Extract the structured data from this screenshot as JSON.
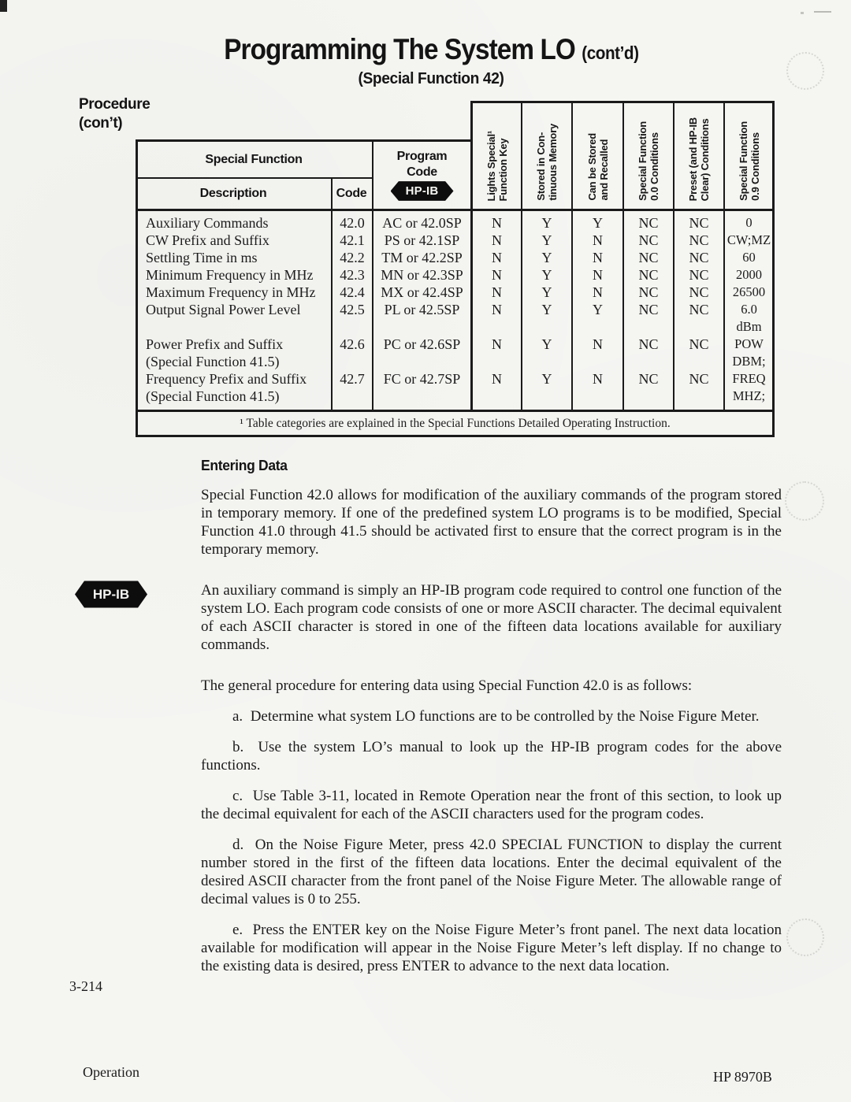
{
  "page": {
    "title": "Programming The System LO",
    "title_suffix": "(cont’d)",
    "subtitle": "(Special Function 42)",
    "margin_label_line1": "Procedure",
    "margin_label_line2": "(con’t)",
    "hpib_badge": "HP-IB",
    "footer_page_number": "3-214",
    "footer_left": "Operation",
    "footer_right": "HP 8970B"
  },
  "table": {
    "header": {
      "special_function": "Special Function",
      "description": "Description",
      "code": "Code",
      "program_line1": "Program",
      "program_line2": "Code",
      "hpib_badge": "HP-IB",
      "rotated_columns": [
        "Lights Special¹\nFunction Key",
        "Stored in Con-\ntinuous Memory",
        "Can be Stored\nand Recalled",
        "Special Function\n0.0 Conditions",
        "Preset (and HP-IB\nClear) Conditions",
        "Special Function\n0.9 Conditions"
      ]
    },
    "rows": [
      {
        "description": "Auxiliary Commands",
        "code": "42.0",
        "program_code": "AC or 42.0SP",
        "lights_special_key": "N",
        "stored_in_continuous_memory": "Y",
        "can_be_stored_and_recalled": "Y",
        "sf_00_conditions": "NC",
        "preset_conditions": "NC",
        "sf_09_conditions": "0"
      },
      {
        "description": "CW Prefix and Suffix",
        "code": "42.1",
        "program_code": "PS or 42.1SP",
        "lights_special_key": "N",
        "stored_in_continuous_memory": "Y",
        "can_be_stored_and_recalled": "N",
        "sf_00_conditions": "NC",
        "preset_conditions": "NC",
        "sf_09_conditions": "CW;MZ"
      },
      {
        "description": "Settling Time in ms",
        "code": "42.2",
        "program_code": "TM or 42.2SP",
        "lights_special_key": "N",
        "stored_in_continuous_memory": "Y",
        "can_be_stored_and_recalled": "N",
        "sf_00_conditions": "NC",
        "preset_conditions": "NC",
        "sf_09_conditions": "60"
      },
      {
        "description": "Minimum Frequency in MHz",
        "code": "42.3",
        "program_code": "MN or 42.3SP",
        "lights_special_key": "N",
        "stored_in_continuous_memory": "Y",
        "can_be_stored_and_recalled": "N",
        "sf_00_conditions": "NC",
        "preset_conditions": "NC",
        "sf_09_conditions": "2000"
      },
      {
        "description": "Maximum Frequency in MHz",
        "code": "42.4",
        "program_code": "MX or 42.4SP",
        "lights_special_key": "N",
        "stored_in_continuous_memory": "Y",
        "can_be_stored_and_recalled": "N",
        "sf_00_conditions": "NC",
        "preset_conditions": "NC",
        "sf_09_conditions": "26500"
      },
      {
        "description": "Output Signal Power Level",
        "code": "42.5",
        "program_code": "PL or 42.5SP",
        "lights_special_key": "N",
        "stored_in_continuous_memory": "Y",
        "can_be_stored_and_recalled": "Y",
        "sf_00_conditions": "NC",
        "preset_conditions": "NC",
        "sf_09_conditions": "6.0 dBm"
      },
      {
        "description": "Power Prefix and Suffix (Special Function 41.5)",
        "code": "42.6",
        "program_code": "PC or 42.6SP",
        "lights_special_key": "N",
        "stored_in_continuous_memory": "Y",
        "can_be_stored_and_recalled": "N",
        "sf_00_conditions": "NC",
        "preset_conditions": "NC",
        "sf_09_conditions": "POW DBM;"
      },
      {
        "description": "Frequency Prefix and Suffix (Special Function 41.5)",
        "code": "42.7",
        "program_code": "FC or 42.7SP",
        "lights_special_key": "N",
        "stored_in_continuous_memory": "Y",
        "can_be_stored_and_recalled": "N",
        "sf_00_conditions": "NC",
        "preset_conditions": "NC",
        "sf_09_conditions": "FREQ MHZ;"
      }
    ],
    "grid_lines": [
      [
        "Auxiliary Commands",
        "42.0",
        "AC or 42.0SP",
        "N",
        "Y",
        "Y",
        "NC",
        "NC",
        "0"
      ],
      [
        "CW Prefix and Suffix",
        "42.1",
        "PS or 42.1SP",
        "N",
        "Y",
        "N",
        "NC",
        "NC",
        "CW;MZ"
      ],
      [
        "Settling Time in ms",
        "42.2",
        "TM or 42.2SP",
        "N",
        "Y",
        "N",
        "NC",
        "NC",
        "60"
      ],
      [
        "Minimum Frequency in MHz",
        "42.3",
        "MN or 42.3SP",
        "N",
        "Y",
        "N",
        "NC",
        "NC",
        "2000"
      ],
      [
        "Maximum Frequency in MHz",
        "42.4",
        "MX or 42.4SP",
        "N",
        "Y",
        "N",
        "NC",
        "NC",
        "26500"
      ],
      [
        "Output Signal Power Level",
        "42.5",
        "PL or 42.5SP",
        "N",
        "Y",
        "Y",
        "NC",
        "NC",
        "6.0"
      ],
      [
        "",
        "",
        "",
        "",
        "",
        "",
        "",
        "",
        "dBm"
      ],
      [
        "Power Prefix and Suffix",
        "42.6",
        "PC or 42.6SP",
        "N",
        "Y",
        "N",
        "NC",
        "NC",
        "POW"
      ],
      [
        "(Special Function 41.5)",
        "",
        "",
        "",
        "",
        "",
        "",
        "",
        "DBM;"
      ],
      [
        "Frequency Prefix and Suffix",
        "42.7",
        "FC or 42.7SP",
        "N",
        "Y",
        "N",
        "NC",
        "NC",
        "FREQ"
      ],
      [
        "(Special Function 41.5)",
        "",
        "",
        "",
        "",
        "",
        "",
        "",
        "MHZ;"
      ]
    ],
    "footnote": "¹ Table categories are explained in the Special Functions Detailed Operating Instruction."
  },
  "sections": {
    "entering_data_heading": "Entering Data",
    "para1": "Special Function 42.0 allows for modification of the auxiliary commands of the program stored in temporary memory. If one of the predefined system LO programs is to be modified, Special Function 41.0 through 41.5 should be activated first to ensure that the correct program is in the temporary memory.",
    "para2": "An auxiliary command is simply an HP-IB program code required to control one function of the system LO. Each program code consists of one or more ASCII character. The decimal equivalent of each ASCII character is stored in one of the fifteen data locations available for auxiliary commands.",
    "para3": "The general procedure for entering data using Special Function 42.0 is as follows:",
    "items": [
      {
        "label": "a.",
        "text": "Determine what system LO functions are to be controlled by the Noise Figure Meter."
      },
      {
        "label": "b.",
        "text": "Use the system LO’s manual to look up the HP-IB program codes for the above functions."
      },
      {
        "label": "c.",
        "text": "Use Table 3-11, located in Remote Operation near the front of this section, to look up the decimal equivalent for each of the ASCII characters used for the program codes."
      },
      {
        "label": "d.",
        "text": "On the Noise Figure Meter, press 42.0 SPECIAL FUNCTION to display the current number stored in the first of the fifteen data locations. Enter the decimal equivalent of the desired ASCII character from the front panel of the Noise Figure Meter. The allowable range of decimal values is 0 to 255."
      },
      {
        "label": "e.",
        "text": "Press the ENTER key on the Noise Figure Meter’s front panel. The next data location available for modification will appear in the Noise Figure Meter’s left display. If no change to the existing data is desired, press ENTER to advance to the next data location."
      }
    ]
  },
  "colors": {
    "ink": "#1c1c1c",
    "paper": "#f5f5f2",
    "badge_bg": "#0d0d0d"
  }
}
